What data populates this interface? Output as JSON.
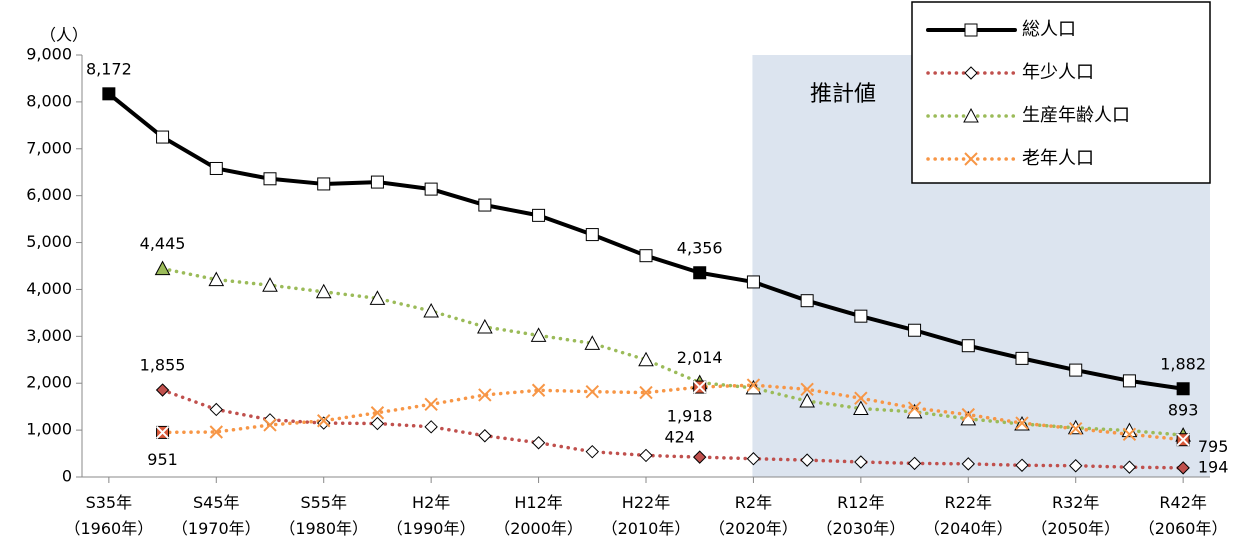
{
  "chart_data": {
    "type": "line",
    "y_unit": "（人）",
    "annotation": "推計値",
    "categories": [
      "S35年\n（1960年）",
      null,
      "S45年\n（1970年）",
      null,
      "S55年\n（1980年）",
      null,
      "H2年\n（1990年）",
      null,
      "H12年\n（2000年）",
      null,
      "H22年\n（2010年）",
      null,
      "R2年\n（2020年）",
      null,
      "R12年\n（2030年）",
      null,
      "R22年\n（2040年）",
      null,
      "R32年\n（2050年）",
      null,
      "R42年\n（2060年）"
    ],
    "ylim": [
      0,
      9000
    ],
    "yticks": [
      0,
      {
        "value": 1000,
        "label": "1,000"
      },
      {
        "value": 2000,
        "label": "2,000"
      },
      {
        "value": 3000,
        "label": "3,000"
      },
      {
        "value": 4000,
        "label": "4,000"
      },
      {
        "value": 5000,
        "label": "5,000"
      },
      {
        "value": 6000,
        "label": "6,000"
      },
      {
        "value": 7000,
        "label": "7,000"
      },
      {
        "value": 8000,
        "label": "8,000"
      },
      {
        "value": 9000,
        "label": "9,000"
      }
    ],
    "legend": "top-right",
    "series": [
      {
        "name": "総人口",
        "color": "#000000",
        "marker": "square",
        "dash": false,
        "values": [
          8172,
          7250,
          6580,
          6360,
          6250,
          6290,
          6140,
          5800,
          5580,
          5170,
          4720,
          4356,
          4160,
          3760,
          3430,
          3130,
          2800,
          2530,
          2280,
          2050,
          1882
        ],
        "value_labels": [
          "8,172",
          null,
          null,
          null,
          null,
          null,
          null,
          null,
          null,
          null,
          null,
          "4,356",
          null,
          null,
          null,
          null,
          null,
          null,
          null,
          null,
          "1,882"
        ]
      },
      {
        "name": "年少人口",
        "color": "#c0504d",
        "marker": "diamond",
        "dash": true,
        "values": [
          null,
          1855,
          1440,
          1220,
          1150,
          1140,
          1070,
          880,
          730,
          540,
          460,
          424,
          390,
          360,
          320,
          290,
          280,
          250,
          240,
          210,
          194
        ],
        "value_labels": [
          null,
          "1,855",
          null,
          null,
          null,
          null,
          null,
          null,
          null,
          null,
          null,
          "424",
          null,
          null,
          null,
          null,
          null,
          null,
          null,
          null,
          "194"
        ]
      },
      {
        "name": "生産年齢人口",
        "color": "#9bbb59",
        "marker": "triangle",
        "dash": true,
        "values": [
          null,
          4445,
          4210,
          4090,
          3950,
          3810,
          3540,
          3200,
          3020,
          2850,
          2500,
          2014,
          1900,
          1620,
          1460,
          1390,
          1240,
          1130,
          1050,
          990,
          893
        ],
        "value_labels": [
          null,
          "4,445",
          null,
          null,
          null,
          null,
          null,
          null,
          null,
          null,
          null,
          "2,014",
          null,
          null,
          null,
          null,
          null,
          null,
          null,
          null,
          "893"
        ]
      },
      {
        "name": "老年人口",
        "color": "#f79646",
        "marker": "x",
        "dash": true,
        "values": [
          null,
          951,
          960,
          1110,
          1200,
          1370,
          1550,
          1750,
          1850,
          1820,
          1800,
          1918,
          1960,
          1870,
          1680,
          1470,
          1330,
          1150,
          1030,
          910,
          795
        ],
        "value_labels": [
          null,
          "951",
          null,
          null,
          null,
          null,
          null,
          null,
          null,
          null,
          null,
          "1,918",
          null,
          null,
          null,
          null,
          null,
          null,
          null,
          null,
          "795"
        ]
      }
    ]
  }
}
